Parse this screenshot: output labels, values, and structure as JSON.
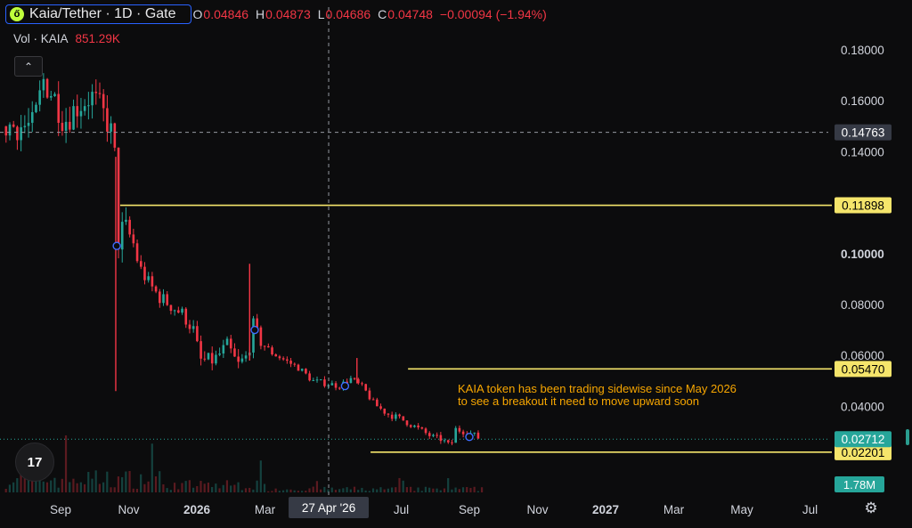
{
  "header": {
    "logo_glyph": "ő",
    "symbol_title": "Kaia/Tether · 1D · Gate",
    "more_glyph": "∘∘∘",
    "ohlc": [
      {
        "key": "O",
        "value": "0.04846"
      },
      {
        "key": "H",
        "value": "0.04873"
      },
      {
        "key": "L",
        "value": "0.04686"
      },
      {
        "key": "C",
        "value": "0.04748"
      }
    ],
    "change": "−0.00094 (−1.94%)",
    "volume_label": "Vol · KAIA",
    "volume_value": "851.29K"
  },
  "collapse_glyph": "⌃",
  "tv_logo_text": "17",
  "settings_glyph": "⚙",
  "annotation": {
    "line1": "KAIA token has been trading sidewise since May 2026",
    "line2": "to see a breakout it need to move upward soon"
  },
  "colors": {
    "up": "#26a69a",
    "down": "#f23645",
    "level_line": "#f5e56b",
    "annotation": "#f7a600",
    "last_price": "#26a69a",
    "background": "#0c0c0d"
  },
  "chart_data": {
    "type": "candlestick",
    "symbol": "Kaia/Tether",
    "interval": "1D",
    "exchange": "Gate",
    "y_axis": {
      "ticks": [
        "0.18000",
        "0.16000",
        "0.14000",
        "0.10000",
        "0.08000",
        "0.06000",
        "0.04000"
      ],
      "tick_values": [
        0.18,
        0.16,
        0.14,
        0.1,
        0.08,
        0.06,
        0.04
      ],
      "bold_tick": "0.10000"
    },
    "x_axis": {
      "ticks": [
        "Sep",
        "Nov",
        "2026",
        "Mar",
        "Jul",
        "Sep",
        "Nov",
        "2027",
        "Mar",
        "May",
        "Jul"
      ],
      "bold_ticks": [
        "2026",
        "2027"
      ],
      "tick_months": [
        0,
        2,
        4,
        6,
        10,
        12,
        14,
        16,
        18,
        20,
        22
      ],
      "crosshair_label": "27 Apr '26",
      "crosshair_month": 7.87
    },
    "horizontal_levels": [
      {
        "label": "0.11898",
        "value": 0.11898,
        "from_month": 1.75
      },
      {
        "label": "0.05470",
        "value": 0.0547,
        "from_month": 10.2
      },
      {
        "label": "0.02201",
        "value": 0.02201,
        "from_month": 9.1
      }
    ],
    "crosshair_price": {
      "label": "0.14763",
      "value": 0.14763
    },
    "last_price": {
      "label": "0.02712",
      "value": 0.02712
    },
    "volume_badge": "1.78M",
    "markers": [
      {
        "month": 1.65,
        "value": 0.103
      },
      {
        "month": 5.7,
        "value": 0.07
      },
      {
        "month": 8.35,
        "value": 0.048
      },
      {
        "month": 12.0,
        "value": 0.028
      }
    ],
    "price_path": [
      {
        "m": -0.8,
        "p": 0.15
      },
      {
        "m": -0.5,
        "p": 0.168
      },
      {
        "m": -0.2,
        "p": 0.162
      },
      {
        "m": 0.1,
        "p": 0.152
      },
      {
        "m": 0.5,
        "p": 0.158
      },
      {
        "m": 0.9,
        "p": 0.162
      },
      {
        "m": 1.2,
        "p": 0.156
      },
      {
        "m": 1.45,
        "p": 0.15
      },
      {
        "m": 1.62,
        "p": 0.135
      },
      {
        "m": 1.66,
        "p": 0.104
      },
      {
        "m": 1.85,
        "p": 0.11
      },
      {
        "m": 2.1,
        "p": 0.106
      },
      {
        "m": 2.3,
        "p": 0.095
      },
      {
        "m": 2.6,
        "p": 0.088
      },
      {
        "m": 2.9,
        "p": 0.083
      },
      {
        "m": 3.3,
        "p": 0.079
      },
      {
        "m": 3.6,
        "p": 0.076
      },
      {
        "m": 3.9,
        "p": 0.07
      },
      {
        "m": 4.1,
        "p": 0.058
      },
      {
        "m": 4.5,
        "p": 0.058
      },
      {
        "m": 4.9,
        "p": 0.064
      },
      {
        "m": 5.2,
        "p": 0.056
      },
      {
        "m": 5.5,
        "p": 0.06
      },
      {
        "m": 5.65,
        "p": 0.072
      },
      {
        "m": 5.85,
        "p": 0.066
      },
      {
        "m": 6.2,
        "p": 0.061
      },
      {
        "m": 6.6,
        "p": 0.058
      },
      {
        "m": 7.0,
        "p": 0.055
      },
      {
        "m": 7.4,
        "p": 0.05
      },
      {
        "m": 7.8,
        "p": 0.049
      },
      {
        "m": 8.2,
        "p": 0.048
      },
      {
        "m": 8.5,
        "p": 0.051
      },
      {
        "m": 8.9,
        "p": 0.047
      },
      {
        "m": 9.2,
        "p": 0.041
      },
      {
        "m": 9.6,
        "p": 0.037
      },
      {
        "m": 10.0,
        "p": 0.035
      },
      {
        "m": 10.4,
        "p": 0.032
      },
      {
        "m": 10.9,
        "p": 0.028
      },
      {
        "m": 11.2,
        "p": 0.027
      },
      {
        "m": 11.45,
        "p": 0.024
      },
      {
        "m": 11.6,
        "p": 0.031
      },
      {
        "m": 11.9,
        "p": 0.03
      },
      {
        "m": 12.1,
        "p": 0.029
      },
      {
        "m": 12.35,
        "p": 0.027
      }
    ],
    "spikes": [
      {
        "m": 5.55,
        "high": 0.096,
        "low": 0.058
      },
      {
        "m": 8.7,
        "high": 0.059,
        "low": 0.049
      },
      {
        "m": 1.62,
        "high": 0.138,
        "low": 0.046
      }
    ]
  }
}
